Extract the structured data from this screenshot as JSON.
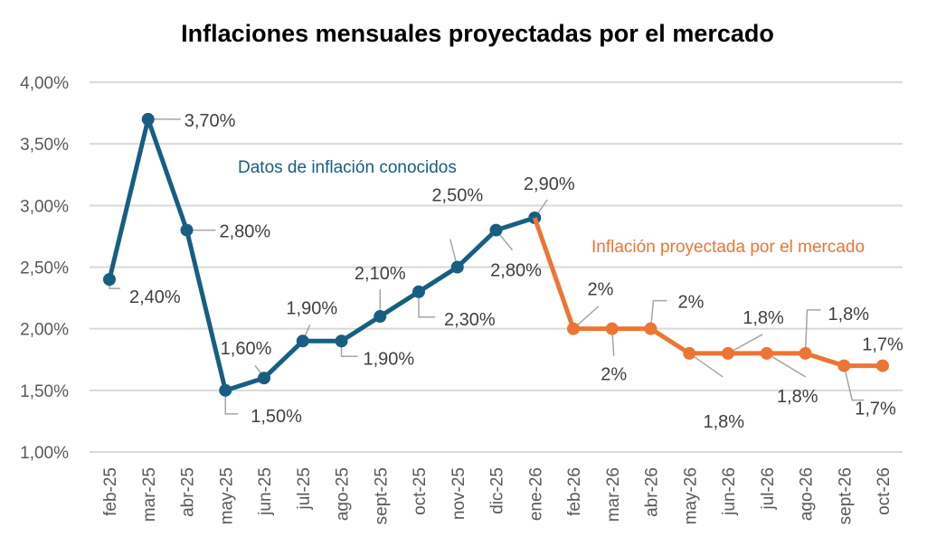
{
  "chart_data": {
    "type": "line",
    "title": "Inflaciones mensuales proyectadas por el mercado",
    "xlabel": "",
    "ylabel": "",
    "ylim": [
      0.01,
      0.04
    ],
    "yticks": [
      0.01,
      0.015,
      0.02,
      0.025,
      0.03,
      0.035,
      0.04
    ],
    "ytick_labels": [
      "1,00%",
      "1,50%",
      "2,00%",
      "2,50%",
      "3,00%",
      "3,50%",
      "4,00%"
    ],
    "grid": true,
    "categories": [
      "feb-25",
      "mar-25",
      "abr-25",
      "may-25",
      "jun-25",
      "jul-25",
      "ago-25",
      "sept-25",
      "oct-25",
      "nov-25",
      "dic-25",
      "ene-26",
      "feb-26",
      "mar-26",
      "abr-26",
      "may-26",
      "jun-26",
      "jul-26",
      "ago-26",
      "sept-26",
      "oct-26"
    ],
    "series": [
      {
        "name": "Datos de inflación conocidos",
        "color": "#175E82",
        "start_index": 0,
        "values": [
          0.024,
          0.037,
          0.028,
          0.015,
          0.016,
          0.019,
          0.019,
          0.021,
          0.023,
          0.025,
          0.028,
          0.029
        ],
        "labels": [
          "2,40%",
          "3,70%",
          "2,80%",
          "1,50%",
          "1,60%",
          "1,90%",
          "1,90%",
          "2,10%",
          "2,30%",
          "2,50%",
          "2,80%",
          "2,90%"
        ]
      },
      {
        "name": "Inflación proyectada por el mercado",
        "color": "#ED7533",
        "start_index": 11,
        "values": [
          0.029,
          0.02,
          0.02,
          0.02,
          0.018,
          0.018,
          0.018,
          0.018,
          0.017,
          0.017
        ],
        "labels": [
          null,
          "2%",
          "2%",
          "2%",
          "1,8%",
          "1,8%",
          "1,8%",
          "1,8%",
          "1,7%",
          "1,7%"
        ]
      }
    ],
    "annotations": [
      {
        "text": "Datos de inflación conocidos",
        "color": "#175E82"
      },
      {
        "text": "Inflación proyectada por el mercado",
        "color": "#ED7533"
      }
    ],
    "legend": "none"
  }
}
